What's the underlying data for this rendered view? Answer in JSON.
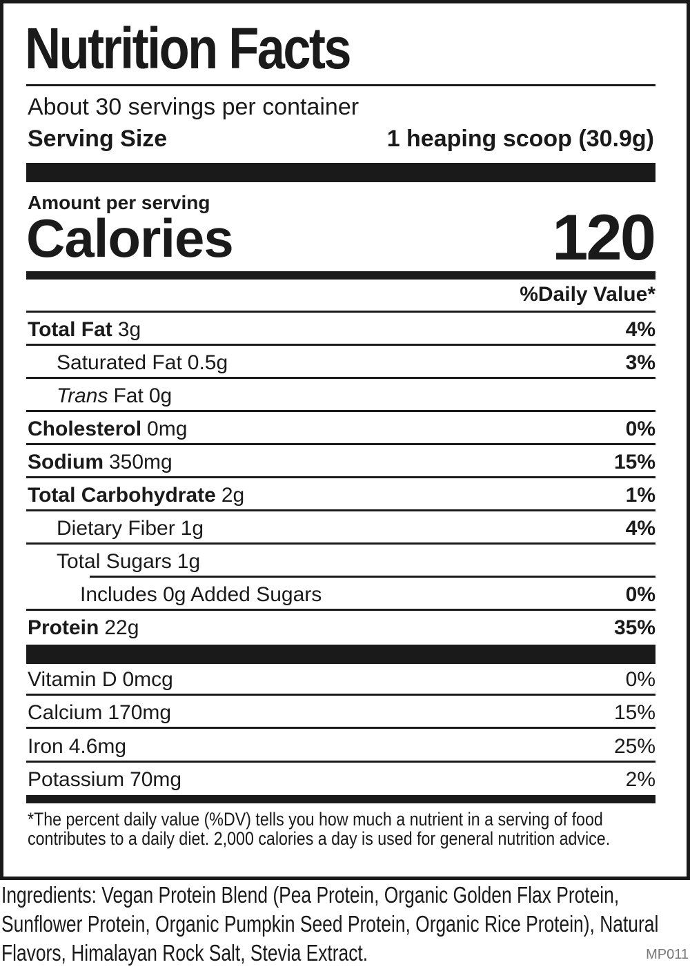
{
  "title": "Nutrition Facts",
  "servings_per_container": "About 30 servings per container",
  "serving_size": {
    "label": "Serving Size",
    "value": "1 heaping scoop (30.9g)"
  },
  "amount_per_serving": "Amount per serving",
  "calories": {
    "label": "Calories",
    "value": "120"
  },
  "daily_value_header": "%Daily Value*",
  "nutrients": [
    {
      "name": "Total Fat",
      "amount": "3g",
      "dv": "4%"
    },
    {
      "name": "Saturated Fat",
      "amount": "0.5g",
      "dv": "3%"
    },
    {
      "name": {
        "italic": "Trans",
        "plain": "Fat"
      },
      "amount": "0g"
    },
    {
      "name": "Cholesterol",
      "amount": "0mg",
      "dv": "0%"
    },
    {
      "name": "Sodium",
      "amount": "350mg",
      "dv": "15%"
    },
    {
      "name": "Total Carbohydrate",
      "amount": "2g",
      "dv": "1%"
    },
    {
      "name": "Dietary Fiber",
      "amount": "1g",
      "dv": "4%"
    },
    {
      "name": "Total Sugars",
      "amount": "1g"
    },
    {
      "name": "Includes 0g Added Sugars",
      "dv": "0%"
    },
    {
      "name": "Protein",
      "amount": "22g",
      "dv": "35%"
    }
  ],
  "vitamins": [
    {
      "name": "Vitamin D",
      "amount": "0mcg",
      "dv": "0%"
    },
    {
      "name": "Calcium",
      "amount": "170mg",
      "dv": "15%"
    },
    {
      "name": "Iron",
      "amount": "4.6mg",
      "dv": "25%"
    },
    {
      "name": "Potassium",
      "amount": "70mg",
      "dv": "2%"
    }
  ],
  "footnote": [
    "*The percent daily value (%DV) tells you how much a nutrient in a serving of food",
    "contributes to a daily diet. 2,000 calories a day is used for general nutrition advice."
  ],
  "ingredients": [
    "Ingredients: Vegan Protein Blend (Pea Protein, Organic Golden Flax Protein,",
    "Sunflower Protein, Organic Pumpkin Seed Protein, Organic Rice Protein), Natural",
    "Flavors, Himalayan Rock Salt, Stevia Extract."
  ],
  "product_code": "MP011"
}
